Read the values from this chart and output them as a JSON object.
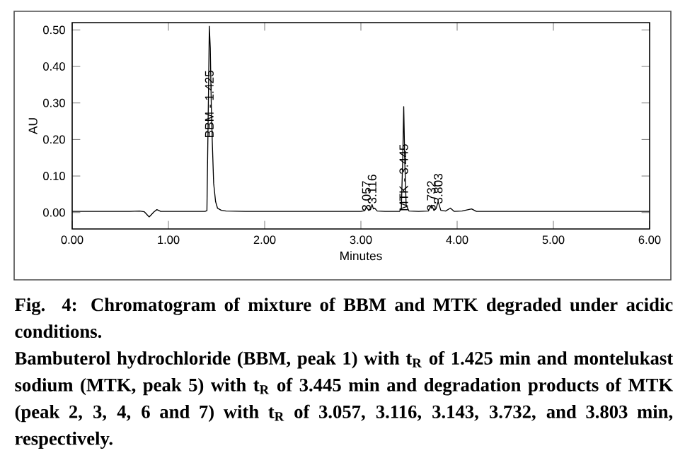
{
  "chart_data": {
    "type": "line",
    "xlabel": "Minutes",
    "ylabel": "AU",
    "x": [
      0.0,
      0.2,
      0.4,
      0.6,
      0.7,
      0.75,
      0.8,
      0.85,
      0.88,
      0.92,
      1.0,
      1.2,
      1.38,
      1.4,
      1.415,
      1.425,
      1.435,
      1.445,
      1.455,
      1.47,
      1.49,
      1.51,
      1.55,
      1.6,
      1.8,
      2.0,
      2.5,
      3.0,
      3.04,
      3.057,
      3.08,
      3.1,
      3.116,
      3.13,
      3.143,
      3.17,
      3.25,
      3.4,
      3.42,
      3.435,
      3.445,
      3.455,
      3.47,
      3.5,
      3.6,
      3.7,
      3.732,
      3.76,
      3.78,
      3.803,
      3.83,
      3.88,
      3.93,
      3.97,
      4.05,
      4.15,
      4.2,
      4.4,
      4.8,
      5.2,
      6.0
    ],
    "series": [
      {
        "color": "#000000",
        "values": [
          0.003,
          0.003,
          0.003,
          0.003,
          0.004,
          0.002,
          -0.012,
          0.002,
          0.008,
          0.003,
          0.003,
          0.003,
          0.003,
          0.005,
          0.3,
          0.51,
          0.45,
          0.3,
          0.2,
          0.08,
          0.03,
          0.012,
          0.006,
          0.004,
          0.003,
          0.003,
          0.003,
          0.003,
          0.005,
          0.016,
          0.006,
          0.008,
          0.022,
          0.01,
          0.012,
          0.004,
          0.003,
          0.003,
          0.01,
          0.15,
          0.29,
          0.15,
          0.02,
          0.004,
          0.003,
          0.004,
          0.02,
          0.006,
          0.01,
          0.03,
          0.006,
          0.004,
          0.012,
          0.003,
          0.004,
          0.01,
          0.003,
          0.003,
          0.003,
          0.003,
          0.003
        ]
      }
    ],
    "xlim": [
      0,
      6
    ],
    "ylim": [
      -0.045,
      0.52
    ],
    "xticks": [
      {
        "value": 0,
        "label": "0.00"
      },
      {
        "value": 1,
        "label": "1.00"
      },
      {
        "value": 2,
        "label": "2.00"
      },
      {
        "value": 3,
        "label": "3.00"
      },
      {
        "value": 4,
        "label": "4.00"
      },
      {
        "value": 5,
        "label": "5.00"
      },
      {
        "value": 6,
        "label": "6.00"
      }
    ],
    "yticks": [
      {
        "value": 0,
        "label": "0.00"
      },
      {
        "value": 0.1,
        "label": "0.10"
      },
      {
        "value": 0.2,
        "label": "0.20"
      },
      {
        "value": 0.3,
        "label": "0.30"
      },
      {
        "value": 0.4,
        "label": "0.40"
      },
      {
        "value": 0.5,
        "label": "0.50"
      }
    ],
    "marker": "none",
    "line_style": "solid",
    "grid": false,
    "annotations": [
      {
        "text": "BBM - 1.425",
        "x": 1.425,
        "y": 0.2
      },
      {
        "text": "3.057",
        "x": 3.057,
        "y": 0.0
      },
      {
        "text": "3.116",
        "x": 3.116,
        "y": 0.02
      },
      {
        "text": "MTK - 3.445",
        "x": 3.445,
        "y": 0.0
      },
      {
        "text": "3.732",
        "x": 3.732,
        "y": 0.0
      },
      {
        "text": "3.803",
        "x": 3.803,
        "y": 0.02
      },
      "Fig. 4: Chromatogram of mixture of BBM and MTK degraded under acidic conditions.",
      "Bambuterol hydrochloride (BBM, peak 1) with t$_{R}$ of 1.425 min and montelukast sodium (MTK, peak 5) with t$_{R}$ of 3.445 min and degradation products of MTK (peak 2, 3, 4, 6 and 7) with t$_{R}$ of 3.057, 3.116, 3.143, 3.732, and 3.803 min, respectively."
    ]
  }
}
